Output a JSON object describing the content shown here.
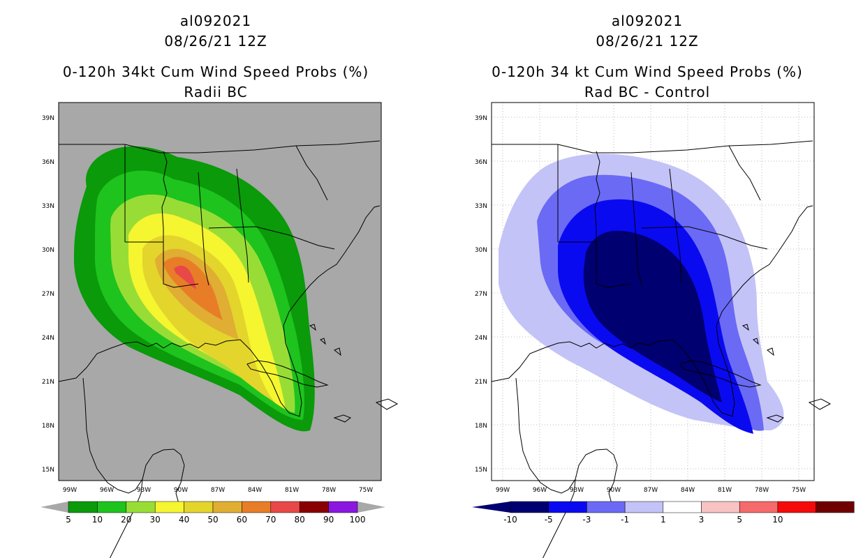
{
  "left_panel": {
    "title_storm": "al092021",
    "title_time": "08/26/21 12Z",
    "title_product": "0-120h 34kt Cum Wind Speed Probs (%)",
    "title_variant": "Radii BC",
    "colorbar": {
      "labels": [
        "5",
        "10",
        "20",
        "30",
        "40",
        "50",
        "60",
        "70",
        "80",
        "90",
        "100"
      ],
      "colors": [
        "#0a9a0a",
        "#1ec31e",
        "#98dd36",
        "#f5f530",
        "#e3d52c",
        "#e0ae32",
        "#e87d28",
        "#e84848",
        "#8a0000",
        "#8b16e0"
      ]
    },
    "colors": {
      "land_background": "#a8a8a8"
    }
  },
  "right_panel": {
    "title_storm": "al092021",
    "title_time": "08/26/21 12Z",
    "title_product": "0-120h 34 kt Cum Wind Speed Probs (%)",
    "title_variant": "Rad BC - Control",
    "colorbar": {
      "labels": [
        "-10",
        "-5",
        "-3",
        "-1",
        "1",
        "3",
        "5",
        "10"
      ],
      "colors": [
        "#000070",
        "#0a0af0",
        "#6a6af5",
        "#c3c3f7",
        "#ffffff",
        "#f7c3c3",
        "#f56a6a",
        "#f50a0a",
        "#700000"
      ]
    },
    "colors": {
      "background": "#ffffff"
    }
  },
  "map_axes": {
    "lon_labels": [
      "99W",
      "96W",
      "93W",
      "90W",
      "87W",
      "84W",
      "81W",
      "78W",
      "75W"
    ],
    "lat_labels": [
      "39N",
      "36N",
      "33N",
      "30N",
      "27N",
      "24N",
      "21N",
      "18N",
      "15N"
    ]
  }
}
